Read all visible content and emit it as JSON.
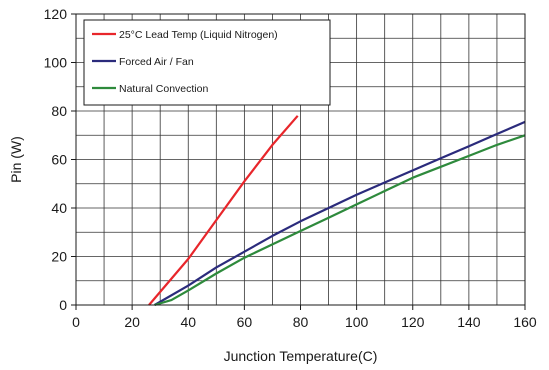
{
  "chart_data": {
    "type": "line",
    "xlabel": "Junction Temperature(C)",
    "ylabel": "Pin (W)",
    "xlim": [
      0,
      160
    ],
    "ylim": [
      0,
      120
    ],
    "x_ticks": [
      0,
      20,
      40,
      60,
      80,
      100,
      120,
      140,
      160
    ],
    "y_ticks": [
      0,
      20,
      40,
      60,
      80,
      100,
      120
    ],
    "x_minor_step": 10,
    "y_minor_step": 10,
    "grid": true,
    "legend_position": "top-left",
    "series": [
      {
        "name": "25°C Lead Temp (Liquid Nitrogen)",
        "color": "#e8262b",
        "points": [
          [
            26,
            0
          ],
          [
            40,
            19
          ],
          [
            50,
            35
          ],
          [
            60,
            51
          ],
          [
            70,
            66
          ],
          [
            79,
            78
          ]
        ]
      },
      {
        "name": "Forced Air / Fan",
        "color": "#2b2b7c",
        "points": [
          [
            28,
            0
          ],
          [
            40,
            8
          ],
          [
            50,
            15.5
          ],
          [
            60,
            22
          ],
          [
            70,
            28.5
          ],
          [
            80,
            34.5
          ],
          [
            90,
            40
          ],
          [
            100,
            45.5
          ],
          [
            110,
            50.5
          ],
          [
            120,
            55.5
          ],
          [
            130,
            60.5
          ],
          [
            140,
            65.5
          ],
          [
            150,
            70.5
          ],
          [
            160,
            75.5
          ]
        ]
      },
      {
        "name": "Natural Convection",
        "color": "#2e8a3c",
        "points": [
          [
            28,
            0
          ],
          [
            34,
            2
          ],
          [
            40,
            6
          ],
          [
            50,
            13
          ],
          [
            60,
            19.5
          ],
          [
            70,
            25
          ],
          [
            80,
            30.5
          ],
          [
            90,
            36
          ],
          [
            100,
            41.5
          ],
          [
            110,
            47
          ],
          [
            120,
            52.5
          ],
          [
            130,
            57
          ],
          [
            140,
            61.5
          ],
          [
            150,
            66
          ],
          [
            160,
            70
          ]
        ]
      }
    ]
  }
}
